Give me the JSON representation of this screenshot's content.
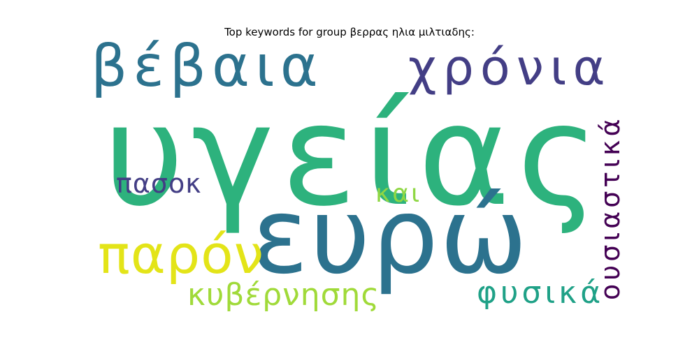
{
  "chart_data": {
    "type": "wordcloud",
    "title": "Top keywords for group βερρας ηλια μιλτιαδης:",
    "words": [
      {
        "text": "υγείας",
        "rank": 1,
        "color": "#2db27d"
      },
      {
        "text": "ευρώ",
        "rank": 2,
        "color": "#2c728e"
      },
      {
        "text": "βέβαια",
        "rank": 3,
        "color": "#2c728e"
      },
      {
        "text": "χρόνια",
        "rank": 4,
        "color": "#433e85"
      },
      {
        "text": "παρόν",
        "rank": 5,
        "color": "#e3e418"
      },
      {
        "text": "ουσιαστικά",
        "rank": 6,
        "color": "#440154"
      },
      {
        "text": "κυβέρνησης",
        "rank": 7,
        "color": "#a0da39"
      },
      {
        "text": "φυσικά",
        "rank": 8,
        "color": "#1fa187"
      },
      {
        "text": "πασοκ",
        "rank": 9,
        "color": "#433e85"
      },
      {
        "text": "και",
        "rank": 10,
        "color": "#8fd744"
      }
    ]
  }
}
